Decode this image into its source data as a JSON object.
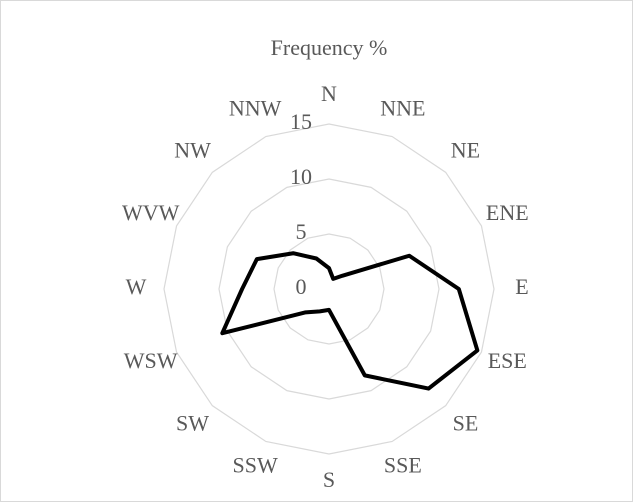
{
  "chart_data": {
    "type": "radar",
    "title": "Frequency %",
    "categories": [
      "N",
      "NNE",
      "NE",
      "ENE",
      "E",
      "ESE",
      "SE",
      "SSE",
      "S",
      "SSW",
      "SW",
      "WSW",
      "W",
      "WVW",
      "NW",
      "NNW"
    ],
    "series": [
      {
        "color": "#000000",
        "values": [
          1.9,
          1.0,
          1.7,
          7.9,
          11.8,
          14.6,
          12.8,
          8.5,
          1.9,
          2.2,
          3.0,
          10.5,
          7.9,
          7.1,
          4.6,
          3.0
        ]
      }
    ],
    "rlim": [
      0,
      15
    ],
    "rticks": [
      0,
      5,
      10,
      15
    ],
    "grid": true
  }
}
